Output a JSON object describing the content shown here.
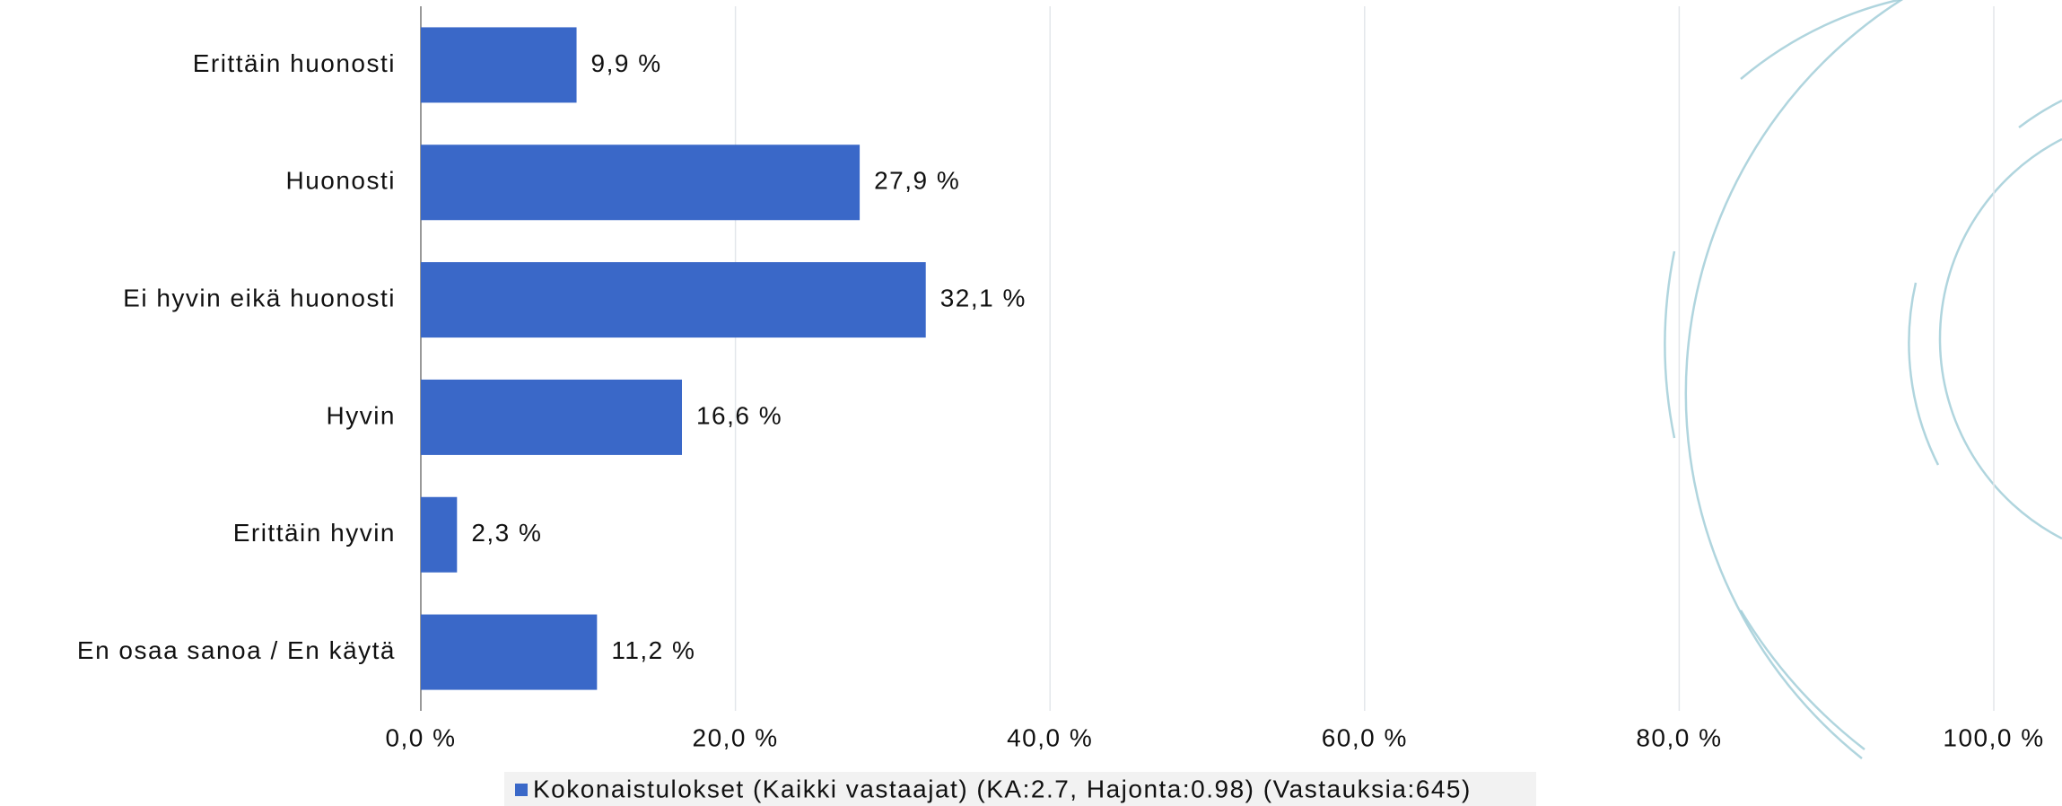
{
  "chart_data": {
    "type": "hbar",
    "categories": [
      "Erittäin huonosti",
      "Huonosti",
      "Ei hyvin eikä huonosti",
      "Hyvin",
      "Erittäin hyvin",
      "En osaa sanoa / En käytä"
    ],
    "series": [
      {
        "name": "Kokonaistulokset (Kaikki vastaajat) (KA:2.7, Hajonta:0.98) (Vastauksia:645)",
        "color": "#3a68c8",
        "values": [
          9.9,
          27.9,
          32.1,
          16.6,
          2.3,
          11.2
        ],
        "value_labels": [
          "9,9 %",
          "27,9 %",
          "32,1 %",
          "16,6 %",
          "2,3 %",
          "11,2 %"
        ]
      }
    ],
    "xlim": [
      0,
      100
    ],
    "xticks": [
      {
        "value": 0,
        "label": "0,0 %"
      },
      {
        "value": 20,
        "label": "20,0 %"
      },
      {
        "value": 40,
        "label": "40,0 %"
      },
      {
        "value": 60,
        "label": "60,0 %"
      },
      {
        "value": 80,
        "label": "80,0 %"
      },
      {
        "value": 100,
        "label": "100,0 %"
      }
    ],
    "grid": true
  }
}
